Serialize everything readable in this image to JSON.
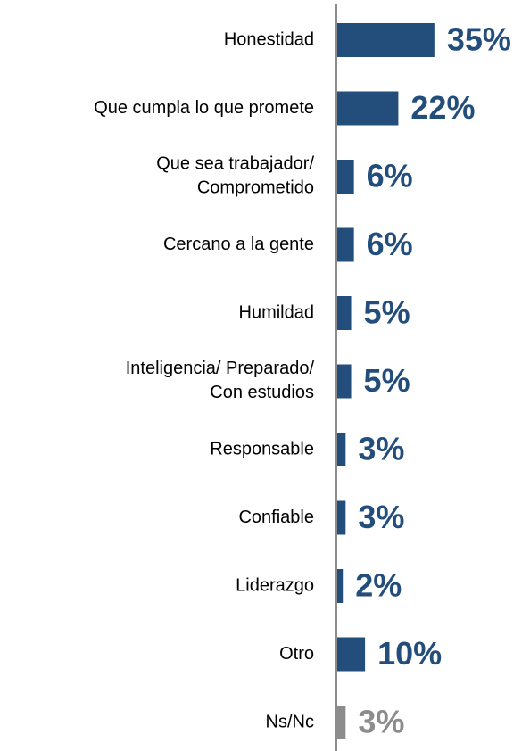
{
  "chart_data": {
    "type": "bar",
    "orientation": "horizontal",
    "categories": [
      "Honestidad",
      "Que cumpla lo que promete",
      "Que sea trabajador/\nComprometido",
      "Cercano a la gente",
      "Humildad",
      "Inteligencia/ Preparado/\nCon estudios",
      "Responsable",
      "Confiable",
      "Liderazgo",
      "Otro",
      "Ns/Nc"
    ],
    "values": [
      35,
      22,
      6,
      6,
      5,
      5,
      3,
      3,
      2,
      10,
      3
    ],
    "value_labels": [
      "35%",
      "22%",
      "6%",
      "6%",
      "5%",
      "5%",
      "3%",
      "3%",
      "2%",
      "10%",
      "3%"
    ],
    "colors": [
      "#234e7c",
      "#234e7c",
      "#234e7c",
      "#234e7c",
      "#234e7c",
      "#234e7c",
      "#234e7c",
      "#234e7c",
      "#234e7c",
      "#234e7c",
      "#8c8c8c"
    ]
  }
}
